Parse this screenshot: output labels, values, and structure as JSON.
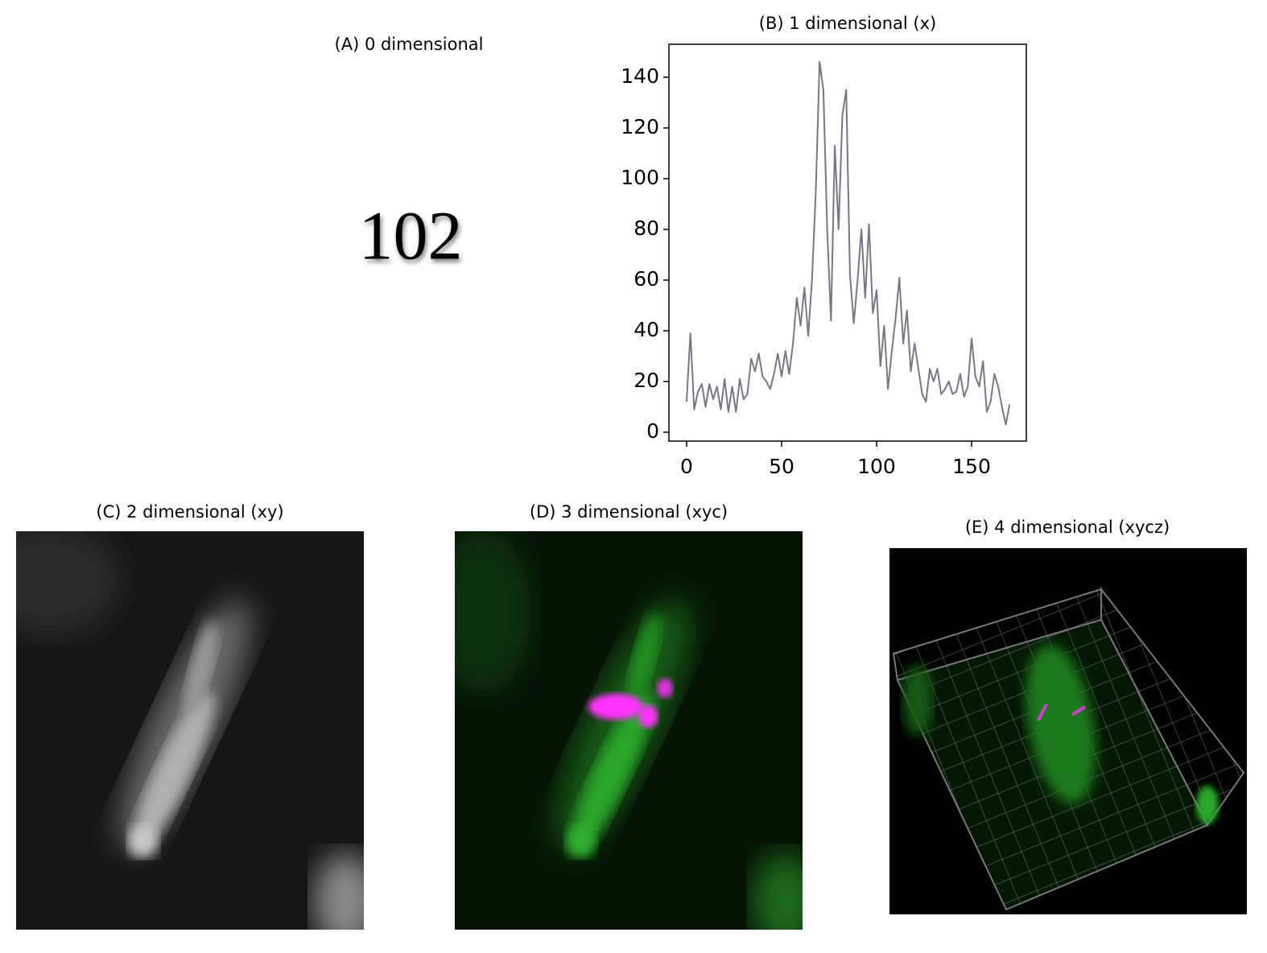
{
  "chart_data": [
    {
      "type": "number",
      "title": "(A) 0 dimensional",
      "value": 102
    },
    {
      "type": "line",
      "title": "(B) 1 dimensional (x)",
      "color": "#777786",
      "x": [
        0,
        2,
        4,
        6,
        8,
        10,
        12,
        14,
        16,
        18,
        20,
        22,
        24,
        26,
        28,
        30,
        32,
        34,
        36,
        38,
        40,
        42,
        44,
        46,
        48,
        50,
        52,
        54,
        56,
        58,
        60,
        62,
        64,
        66,
        68,
        70,
        72,
        74,
        76,
        78,
        80,
        82,
        84,
        86,
        88,
        90,
        92,
        94,
        96,
        98,
        100,
        102,
        104,
        106,
        108,
        110,
        112,
        114,
        116,
        118,
        120,
        122,
        124,
        126,
        128,
        130,
        132,
        134,
        136,
        138,
        140,
        142,
        144,
        146,
        148,
        150,
        152,
        154,
        156,
        158,
        160,
        162,
        164,
        166,
        168,
        170
      ],
      "values": [
        12,
        39,
        9,
        16,
        19,
        10,
        19,
        13,
        18,
        9,
        21,
        8,
        18,
        8,
        21,
        13,
        15,
        29,
        24,
        31,
        22,
        20,
        17,
        23,
        31,
        22,
        32,
        23,
        35,
        53,
        42,
        57,
        38,
        60,
        95,
        146,
        135,
        80,
        44,
        113,
        80,
        125,
        135,
        62,
        43,
        60,
        80,
        53,
        82,
        47,
        56,
        26,
        42,
        17,
        32,
        45,
        61,
        35,
        48,
        24,
        35,
        25,
        15,
        12,
        25,
        20,
        25,
        15,
        17,
        20,
        15,
        16,
        23,
        14,
        18,
        37,
        22,
        18,
        28,
        8,
        12,
        23,
        18,
        10,
        3,
        11
      ],
      "xlim": [
        -9.3,
        178.8
      ],
      "ylim": [
        -3.5,
        153
      ],
      "xticks": [
        0,
        50,
        100,
        150
      ],
      "yticks": [
        0,
        20,
        40,
        60,
        80,
        100,
        120,
        140
      ]
    },
    {
      "type": "image",
      "title": "(C) 2 dimensional (xy)"
    },
    {
      "type": "image",
      "title": "(D) 3 dimensional (xyc)"
    },
    {
      "type": "image",
      "title": "(E) 4 dimensional (xycz)"
    }
  ]
}
